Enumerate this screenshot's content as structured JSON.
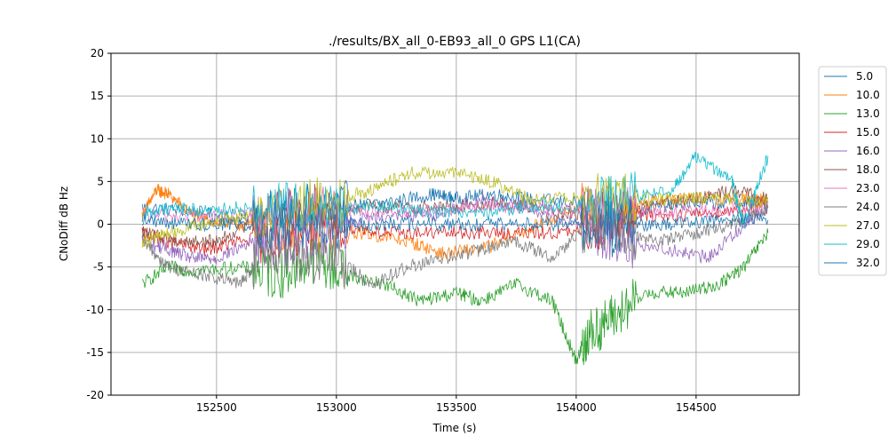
{
  "chart_data": {
    "type": "line",
    "title": "./results/BX_all_0-EB93_all_0 GPS L1(CA)",
    "xlabel": "Time (s)",
    "ylabel": "CNoDiff dB Hz",
    "xlim": [
      152060,
      154930
    ],
    "ylim": [
      -20,
      20
    ],
    "xticks": [
      152500,
      153000,
      153500,
      154000,
      154500
    ],
    "yticks": [
      -20,
      -15,
      -10,
      -5,
      0,
      5,
      10,
      15,
      20
    ],
    "grid": true,
    "legend_position": "right-outside-top",
    "series": [
      {
        "name": "5.0",
        "color": "#1f77b4",
        "points": [
          [
            152190,
            2
          ],
          [
            152400,
            1.5
          ],
          [
            152600,
            0.5
          ],
          [
            152800,
            1.5
          ],
          [
            153000,
            2
          ],
          [
            153200,
            2.5
          ],
          [
            153400,
            3.5
          ],
          [
            153500,
            3
          ],
          [
            153650,
            3.5
          ],
          [
            153800,
            3
          ],
          [
            154000,
            2.5
          ],
          [
            154150,
            -1
          ],
          [
            154300,
            2
          ],
          [
            154500,
            2.5
          ],
          [
            154700,
            2.5
          ],
          [
            154800,
            2.5
          ]
        ]
      },
      {
        "name": "10.0",
        "color": "#ff7f0e",
        "points": [
          [
            152190,
            1
          ],
          [
            152250,
            4
          ],
          [
            152300,
            3.5
          ],
          [
            152400,
            1
          ],
          [
            152550,
            0
          ],
          [
            152700,
            0
          ],
          [
            152900,
            -1
          ],
          [
            153100,
            -1
          ],
          [
            153300,
            -2
          ],
          [
            153450,
            -3.5
          ],
          [
            153650,
            -2.5
          ],
          [
            153850,
            0
          ],
          [
            154000,
            2
          ],
          [
            154200,
            1.5
          ],
          [
            154350,
            3
          ],
          [
            154500,
            3
          ],
          [
            154700,
            3
          ],
          [
            154800,
            3
          ]
        ]
      },
      {
        "name": "13.0",
        "color": "#2ca02c",
        "points": [
          [
            152190,
            -7
          ],
          [
            152300,
            -5
          ],
          [
            152400,
            -5.5
          ],
          [
            152600,
            -5
          ],
          [
            152750,
            -6
          ],
          [
            152900,
            -4
          ],
          [
            153050,
            -6
          ],
          [
            153200,
            -7
          ],
          [
            153350,
            -9
          ],
          [
            153500,
            -8
          ],
          [
            153600,
            -9
          ],
          [
            153750,
            -7
          ],
          [
            153900,
            -9
          ],
          [
            154000,
            -16
          ],
          [
            154050,
            -13
          ],
          [
            154150,
            -11
          ],
          [
            154300,
            -8
          ],
          [
            154450,
            -8
          ],
          [
            154600,
            -7
          ],
          [
            154700,
            -5
          ],
          [
            154800,
            -1
          ]
        ]
      },
      {
        "name": "15.0",
        "color": "#d62728",
        "points": [
          [
            152190,
            -1
          ],
          [
            152300,
            -2
          ],
          [
            152450,
            -3
          ],
          [
            152600,
            -2
          ],
          [
            152800,
            -1
          ],
          [
            153000,
            0
          ],
          [
            153200,
            -1
          ],
          [
            153400,
            -1
          ],
          [
            153600,
            -1
          ],
          [
            153800,
            -1
          ],
          [
            154000,
            -1
          ],
          [
            154200,
            1
          ],
          [
            154400,
            1
          ],
          [
            154600,
            1.5
          ],
          [
            154800,
            2
          ]
        ]
      },
      {
        "name": "16.0",
        "color": "#9467bd",
        "points": [
          [
            152190,
            -2
          ],
          [
            152300,
            -3
          ],
          [
            152400,
            -4
          ],
          [
            152500,
            -4
          ],
          [
            152650,
            -2
          ],
          [
            152800,
            -2
          ],
          [
            153000,
            0
          ],
          [
            153200,
            1
          ],
          [
            153400,
            1
          ],
          [
            153600,
            3
          ],
          [
            153800,
            2
          ],
          [
            154000,
            0
          ],
          [
            154200,
            -2
          ],
          [
            154400,
            -3
          ],
          [
            154550,
            -4
          ],
          [
            154700,
            0
          ],
          [
            154800,
            2
          ]
        ]
      },
      {
        "name": "18.0",
        "color": "#8c564b",
        "points": [
          [
            152190,
            -1
          ],
          [
            152350,
            -2
          ],
          [
            152500,
            -2
          ],
          [
            152700,
            1
          ],
          [
            152900,
            2
          ],
          [
            153100,
            2
          ],
          [
            153300,
            2
          ],
          [
            153500,
            2
          ],
          [
            153700,
            2.5
          ],
          [
            153900,
            1.5
          ],
          [
            154100,
            1
          ],
          [
            154300,
            2
          ],
          [
            154500,
            3
          ],
          [
            154650,
            4
          ],
          [
            154800,
            3
          ]
        ]
      },
      {
        "name": "23.0",
        "color": "#e377c2",
        "points": [
          [
            152190,
            1
          ],
          [
            152400,
            1
          ],
          [
            152600,
            1
          ],
          [
            152800,
            1.5
          ],
          [
            153000,
            1.5
          ],
          [
            153200,
            1.5
          ],
          [
            153400,
            1.5
          ],
          [
            153600,
            2
          ],
          [
            153800,
            2
          ],
          [
            154000,
            1.5
          ],
          [
            154200,
            1.5
          ],
          [
            154400,
            1.5
          ],
          [
            154600,
            1.5
          ],
          [
            154800,
            2
          ]
        ]
      },
      {
        "name": "24.0",
        "color": "#7f7f7f",
        "points": [
          [
            152190,
            -2
          ],
          [
            152300,
            -5
          ],
          [
            152450,
            -6
          ],
          [
            152600,
            -7
          ],
          [
            152700,
            -3
          ],
          [
            152850,
            -4
          ],
          [
            153000,
            -4
          ],
          [
            153150,
            -7
          ],
          [
            153300,
            -5
          ],
          [
            153450,
            -4
          ],
          [
            153600,
            -3
          ],
          [
            153750,
            -2
          ],
          [
            153900,
            -4
          ],
          [
            154050,
            0
          ],
          [
            154200,
            -1
          ],
          [
            154350,
            -2
          ],
          [
            154500,
            -1
          ],
          [
            154650,
            0
          ],
          [
            154800,
            2
          ]
        ]
      },
      {
        "name": "27.0",
        "color": "#bcbd22",
        "points": [
          [
            152190,
            -2
          ],
          [
            152300,
            -1
          ],
          [
            152450,
            0
          ],
          [
            152600,
            1
          ],
          [
            152800,
            2
          ],
          [
            153000,
            3
          ],
          [
            153150,
            4
          ],
          [
            153300,
            6
          ],
          [
            153500,
            6
          ],
          [
            153650,
            5
          ],
          [
            153800,
            3
          ],
          [
            154000,
            3
          ],
          [
            154200,
            3
          ],
          [
            154400,
            3
          ],
          [
            154600,
            3
          ],
          [
            154800,
            2.5
          ]
        ]
      },
      {
        "name": "29.0",
        "color": "#17becf",
        "points": [
          [
            152190,
            1
          ],
          [
            152300,
            2
          ],
          [
            152450,
            1.5
          ],
          [
            152600,
            2
          ],
          [
            152800,
            2
          ],
          [
            153000,
            2
          ],
          [
            153200,
            2
          ],
          [
            153400,
            1.5
          ],
          [
            153600,
            1.5
          ],
          [
            153800,
            2
          ],
          [
            154000,
            2
          ],
          [
            154200,
            3
          ],
          [
            154400,
            4
          ],
          [
            154500,
            8
          ],
          [
            154650,
            5
          ],
          [
            154700,
            0
          ],
          [
            154800,
            8
          ]
        ]
      },
      {
        "name": "32.0",
        "color": "#1f77b4",
        "points": [
          [
            152190,
            0.5
          ],
          [
            152400,
            0
          ],
          [
            152600,
            0
          ],
          [
            152800,
            0
          ],
          [
            153000,
            0
          ],
          [
            153200,
            0
          ],
          [
            153400,
            0
          ],
          [
            153600,
            0
          ],
          [
            153800,
            0
          ],
          [
            154000,
            0
          ],
          [
            154200,
            0
          ],
          [
            154400,
            0
          ],
          [
            154600,
            0.5
          ],
          [
            154800,
            0.5
          ]
        ]
      }
    ]
  }
}
